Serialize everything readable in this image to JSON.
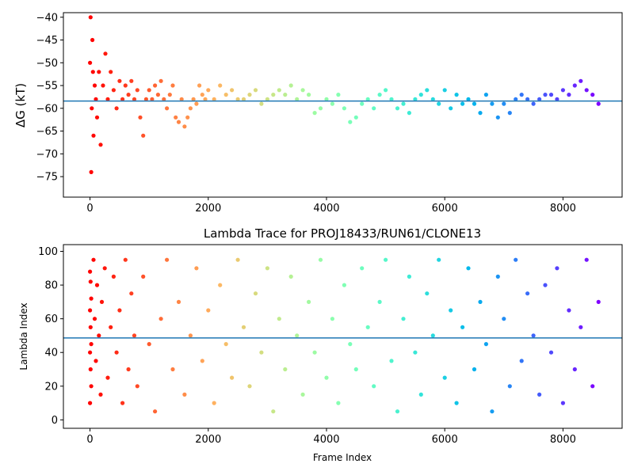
{
  "chart_data": [
    {
      "type": "scatter",
      "title": "",
      "xlabel": "",
      "ylabel": "ΔG (kT)",
      "xlim": [
        -450,
        9000
      ],
      "ylim": [
        -79.5,
        -39
      ],
      "xticks": [
        0,
        2000,
        4000,
        6000,
        8000
      ],
      "xtick_labels": [
        "0",
        "2000",
        "4000",
        "6000",
        "8000"
      ],
      "yticks": [
        -75,
        -70,
        -65,
        -60,
        -55,
        -50,
        -45,
        -40
      ],
      "ytick_labels": [
        "−75",
        "−70",
        "−65",
        "−60",
        "−55",
        "−50",
        "−45",
        "−40"
      ],
      "reference_line_y": -58.4,
      "colormap": "rainbow (red at frame 0 to violet at final frame)",
      "grid": false,
      "series": [
        {
          "points_x": [
            0,
            10,
            20,
            30,
            40,
            50,
            60,
            80,
            100,
            120,
            150,
            180,
            220,
            260,
            300,
            350,
            400,
            450,
            500,
            550,
            600,
            650,
            700,
            750,
            800,
            850,
            900,
            950,
            1000,
            1050,
            1100,
            1150,
            1200,
            1250,
            1300,
            1350,
            1400,
            1450,
            1500,
            1550,
            1600,
            1650,
            1700,
            1750,
            1800,
            1850,
            1900,
            1950,
            2000,
            2100,
            2200,
            2300,
            2400,
            2500,
            2600,
            2700,
            2800,
            2900,
            3000,
            3100,
            3200,
            3300,
            3400,
            3500,
            3600,
            3700,
            3800,
            3900,
            4000,
            4100,
            4200,
            4300,
            4400,
            4500,
            4600,
            4700,
            4800,
            4900,
            5000,
            5100,
            5200,
            5300,
            5400,
            5500,
            5600,
            5700,
            5800,
            5900,
            6000,
            6100,
            6200,
            6300,
            6400,
            6500,
            6600,
            6700,
            6800,
            6900,
            7000,
            7100,
            7200,
            7300,
            7400,
            7500,
            7600,
            7700,
            7800,
            7900,
            8000,
            8100,
            8200,
            8300,
            8400,
            8500,
            8600
          ],
          "points_y": [
            -50,
            -40,
            -74,
            -60,
            -45,
            -52,
            -66,
            -55,
            -58,
            -62,
            -52,
            -68,
            -55,
            -48,
            -58,
            -52,
            -56,
            -60,
            -54,
            -58,
            -55,
            -57,
            -54,
            -58,
            -56,
            -62,
            -66,
            -58,
            -56,
            -58,
            -55,
            -57,
            -54,
            -58,
            -60,
            -57,
            -55,
            -62,
            -63,
            -58,
            -64,
            -62,
            -60,
            -58,
            -59,
            -55,
            -57,
            -58,
            -56,
            -58,
            -55,
            -57,
            -56,
            -58,
            -58,
            -57,
            -56,
            -59,
            -58,
            -57,
            -56,
            -57,
            -55,
            -58,
            -56,
            -57,
            -61,
            -60,
            -58,
            -59,
            -57,
            -60,
            -63,
            -62,
            -59,
            -58,
            -60,
            -57,
            -56,
            -58,
            -60,
            -59,
            -61,
            -58,
            -57,
            -56,
            -58,
            -59,
            -56,
            -60,
            -57,
            -59,
            -58,
            -59,
            -61,
            -57,
            -59,
            -62,
            -59,
            -61,
            -58,
            -57,
            -58,
            -59,
            -58,
            -57,
            -57,
            -58,
            -56,
            -57,
            -55,
            -54,
            -56,
            -57,
            -59
          ]
        }
      ]
    },
    {
      "type": "scatter",
      "title": "Lambda Trace for PROJ18433/RUN61/CLONE13",
      "xlabel": "Frame Index",
      "ylabel": "Lambda Index",
      "xlim": [
        -450,
        9000
      ],
      "ylim": [
        -5,
        104
      ],
      "xticks": [
        0,
        2000,
        4000,
        6000,
        8000
      ],
      "xtick_labels": [
        "0",
        "2000",
        "4000",
        "6000",
        "8000"
      ],
      "yticks": [
        0,
        20,
        40,
        60,
        80,
        100
      ],
      "ytick_labels": [
        "0",
        "20",
        "40",
        "60",
        "80",
        "100"
      ],
      "reference_line_y": 48.6,
      "colormap": "rainbow (red at frame 0 to violet at final frame)",
      "grid": false,
      "series": [
        {
          "points_x": [
            0,
            0,
            0,
            0,
            10,
            10,
            10,
            20,
            20,
            20,
            60,
            80,
            100,
            120,
            150,
            180,
            200,
            250,
            300,
            350,
            400,
            450,
            500,
            550,
            600,
            650,
            700,
            750,
            800,
            900,
            1000,
            1100,
            1200,
            1300,
            1400,
            1500,
            1600,
            1700,
            1800,
            1900,
            2000,
            2100,
            2200,
            2300,
            2400,
            2500,
            2600,
            2700,
            2800,
            2900,
            3000,
            3100,
            3200,
            3300,
            3400,
            3500,
            3600,
            3700,
            3800,
            3900,
            4000,
            4100,
            4200,
            4300,
            4400,
            4500,
            4600,
            4700,
            4800,
            4900,
            5000,
            5100,
            5200,
            5300,
            5400,
            5500,
            5600,
            5700,
            5800,
            5900,
            6000,
            6100,
            6200,
            6300,
            6400,
            6500,
            6600,
            6700,
            6800,
            6900,
            7000,
            7100,
            7200,
            7300,
            7400,
            7500,
            7600,
            7700,
            7800,
            7900,
            8000,
            8100,
            8200,
            8300,
            8400,
            8500,
            8600
          ],
          "points_y": [
            88,
            65,
            40,
            10,
            82,
            30,
            55,
            20,
            72,
            45,
            95,
            60,
            35,
            80,
            50,
            15,
            70,
            90,
            25,
            55,
            85,
            40,
            65,
            10,
            95,
            30,
            75,
            50,
            20,
            85,
            45,
            5,
            60,
            95,
            30,
            70,
            15,
            50,
            90,
            35,
            65,
            10,
            80,
            45,
            25,
            95,
            55,
            20,
            75,
            40,
            90,
            5,
            60,
            30,
            85,
            50,
            15,
            70,
            40,
            95,
            25,
            60,
            10,
            80,
            45,
            30,
            90,
            55,
            20,
            70,
            95,
            35,
            5,
            60,
            85,
            40,
            15,
            75,
            50,
            95,
            25,
            65,
            10,
            55,
            90,
            30,
            70,
            45,
            5,
            85,
            60,
            20,
            95,
            35,
            75,
            50,
            15,
            80,
            40,
            90,
            10,
            65,
            30,
            55,
            95,
            20,
            70
          ]
        }
      ]
    }
  ]
}
